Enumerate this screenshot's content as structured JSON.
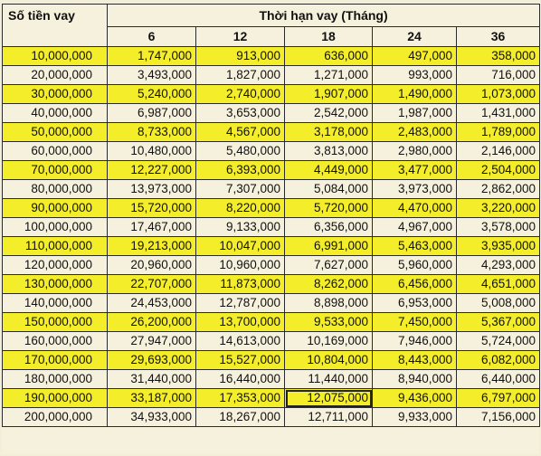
{
  "table": {
    "amount_header": "Số tiền vay",
    "term_header": "Thời hạn vay (Tháng)",
    "terms": [
      "6",
      "12",
      "18",
      "24",
      "36"
    ],
    "highlight_color": "#f4ee2a",
    "rows": [
      {
        "amount": "10,000,000",
        "values": [
          "1,747,000",
          "913,000",
          "636,000",
          "497,000",
          "358,000"
        ]
      },
      {
        "amount": "20,000,000",
        "values": [
          "3,493,000",
          "1,827,000",
          "1,271,000",
          "993,000",
          "716,000"
        ]
      },
      {
        "amount": "30,000,000",
        "values": [
          "5,240,000",
          "2,740,000",
          "1,907,000",
          "1,490,000",
          "1,073,000"
        ]
      },
      {
        "amount": "40,000,000",
        "values": [
          "6,987,000",
          "3,653,000",
          "2,542,000",
          "1,987,000",
          "1,431,000"
        ]
      },
      {
        "amount": "50,000,000",
        "values": [
          "8,733,000",
          "4,567,000",
          "3,178,000",
          "2,483,000",
          "1,789,000"
        ]
      },
      {
        "amount": "60,000,000",
        "values": [
          "10,480,000",
          "5,480,000",
          "3,813,000",
          "2,980,000",
          "2,146,000"
        ]
      },
      {
        "amount": "70,000,000",
        "values": [
          "12,227,000",
          "6,393,000",
          "4,449,000",
          "3,477,000",
          "2,504,000"
        ]
      },
      {
        "amount": "80,000,000",
        "values": [
          "13,973,000",
          "7,307,000",
          "5,084,000",
          "3,973,000",
          "2,862,000"
        ]
      },
      {
        "amount": "90,000,000",
        "values": [
          "15,720,000",
          "8,220,000",
          "5,720,000",
          "4,470,000",
          "3,220,000"
        ]
      },
      {
        "amount": "100,000,000",
        "values": [
          "17,467,000",
          "9,133,000",
          "6,356,000",
          "4,967,000",
          "3,578,000"
        ]
      },
      {
        "amount": "110,000,000",
        "values": [
          "19,213,000",
          "10,047,000",
          "6,991,000",
          "5,463,000",
          "3,935,000"
        ]
      },
      {
        "amount": "120,000,000",
        "values": [
          "20,960,000",
          "10,960,000",
          "7,627,000",
          "5,960,000",
          "4,293,000"
        ]
      },
      {
        "amount": "130,000,000",
        "values": [
          "22,707,000",
          "11,873,000",
          "8,262,000",
          "6,456,000",
          "4,651,000"
        ]
      },
      {
        "amount": "140,000,000",
        "values": [
          "24,453,000",
          "12,787,000",
          "8,898,000",
          "6,953,000",
          "5,008,000"
        ]
      },
      {
        "amount": "150,000,000",
        "values": [
          "26,200,000",
          "13,700,000",
          "9,533,000",
          "7,450,000",
          "5,367,000"
        ]
      },
      {
        "amount": "160,000,000",
        "values": [
          "27,947,000",
          "14,613,000",
          "10,169,000",
          "7,946,000",
          "5,724,000"
        ]
      },
      {
        "amount": "170,000,000",
        "values": [
          "29,693,000",
          "15,527,000",
          "10,804,000",
          "8,443,000",
          "6,082,000"
        ]
      },
      {
        "amount": "180,000,000",
        "values": [
          "31,440,000",
          "16,440,000",
          "11,440,000",
          "8,940,000",
          "6,440,000"
        ]
      },
      {
        "amount": "190,000,000",
        "values": [
          "33,187,000",
          "17,353,000",
          "12,075,000",
          "9,436,000",
          "6,797,000"
        ]
      },
      {
        "amount": "200,000,000",
        "values": [
          "34,933,000",
          "18,267,000",
          "12,711,000",
          "9,933,000",
          "7,156,000"
        ]
      }
    ]
  }
}
